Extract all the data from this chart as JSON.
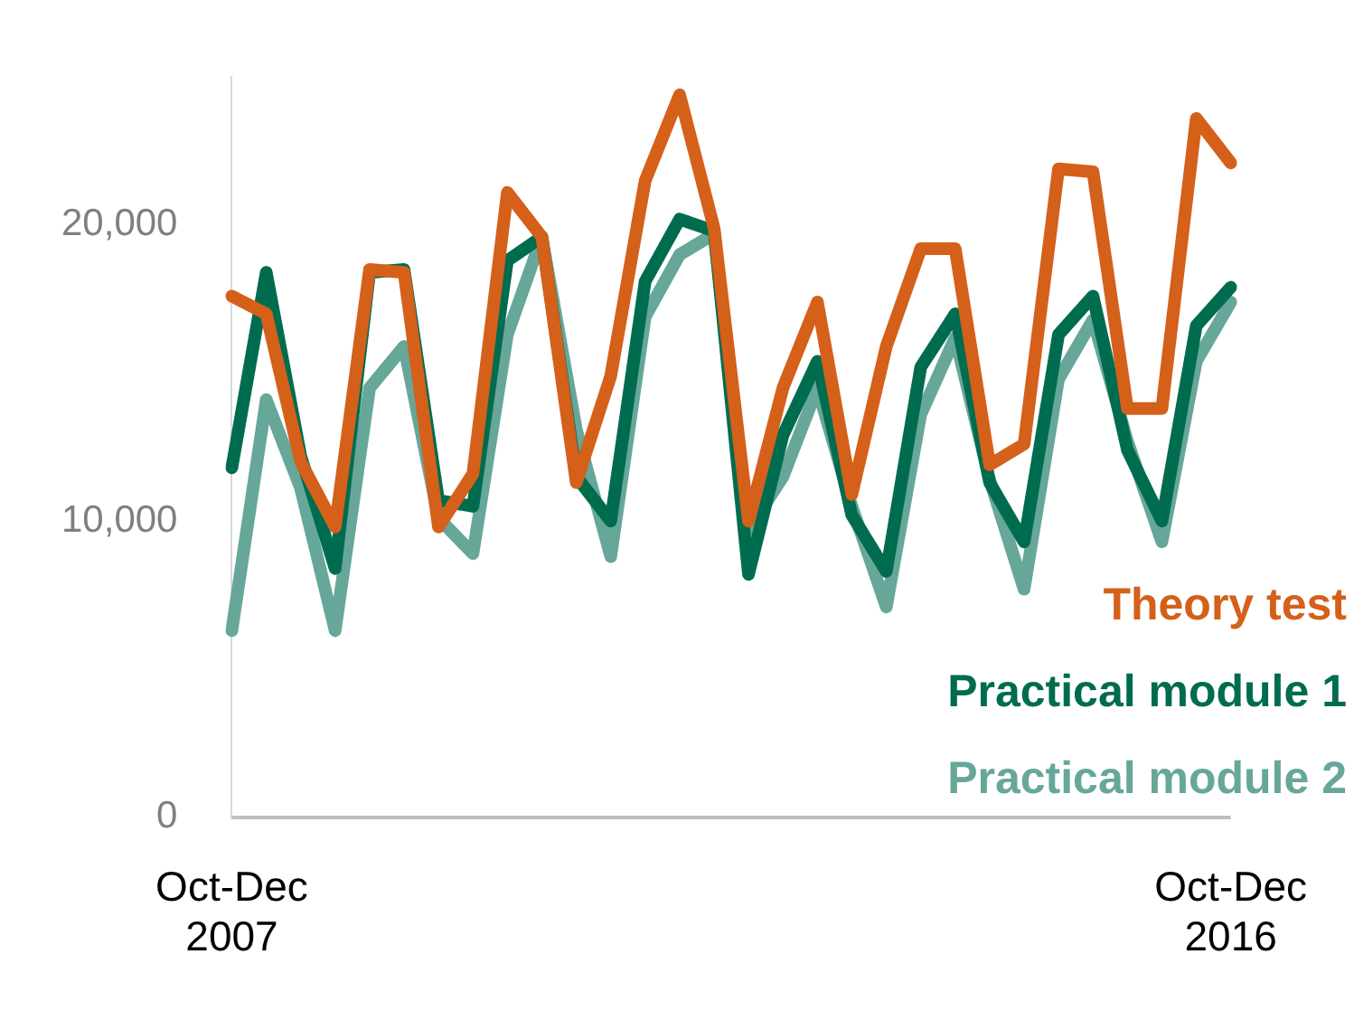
{
  "chart_data": {
    "type": "line",
    "categories": [
      "Oct-Dec 2007",
      null,
      null,
      null,
      null,
      null,
      null,
      null,
      null,
      null,
      null,
      null,
      null,
      null,
      null,
      null,
      null,
      null,
      null,
      null,
      null,
      null,
      null,
      null,
      null,
      null,
      null,
      null,
      null,
      "Oct-Dec 2016"
    ],
    "series": [
      {
        "name": "Theory test",
        "color": "#d4601a",
        "values": [
          17600,
          17000,
          12000,
          9800,
          18500,
          18400,
          9800,
          11600,
          21100,
          19600,
          11300,
          14900,
          21500,
          24400,
          19900,
          10000,
          14500,
          17400,
          10900,
          15900,
          19200,
          19200,
          11900,
          12600,
          21900,
          21800,
          13800,
          13800,
          23600,
          22100
        ]
      },
      {
        "name": "Practical module 1",
        "color": "#006c4f",
        "values": [
          11800,
          18400,
          12200,
          8400,
          18400,
          18500,
          10700,
          10500,
          18800,
          19600,
          11500,
          10000,
          18100,
          20200,
          19800,
          8200,
          12900,
          15400,
          10200,
          8300,
          15200,
          17000,
          11300,
          9300,
          16300,
          17600,
          12400,
          10000,
          16600,
          17900
        ]
      },
      {
        "name": "Practical module 2",
        "color": "#66a79a",
        "values": [
          6300,
          14100,
          11100,
          6300,
          14500,
          15900,
          10100,
          8900,
          16300,
          19600,
          13100,
          8800,
          16900,
          19000,
          19700,
          9700,
          11500,
          14500,
          10500,
          7100,
          13600,
          16200,
          11400,
          7700,
          14800,
          16800,
          12700,
          9300,
          15400,
          17400
        ]
      }
    ],
    "ylim": [
      0,
      25000
    ],
    "yticks": [
      0,
      {
        "value": 10000,
        "label": "10,000"
      },
      {
        "value": 20000,
        "label": "20,000"
      }
    ],
    "grid": false,
    "legend": "bottom right",
    "marker": "none",
    "line_style": "solid"
  }
}
